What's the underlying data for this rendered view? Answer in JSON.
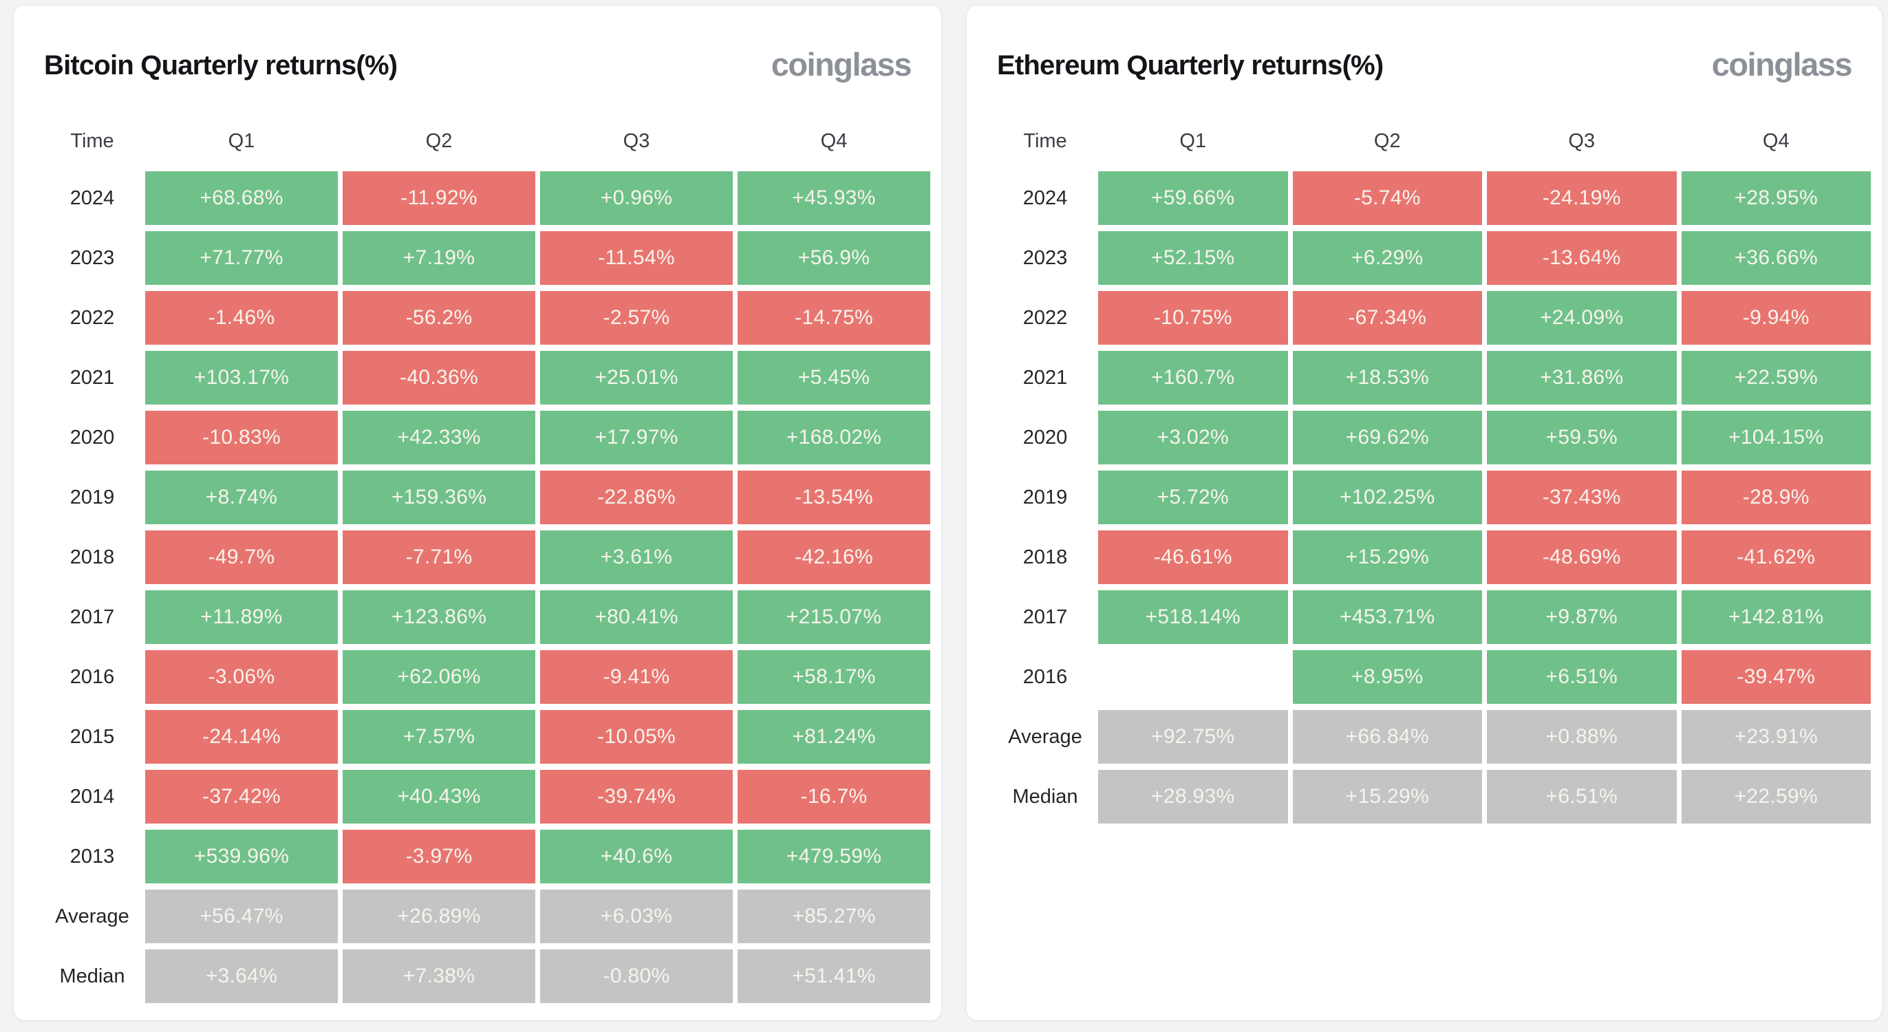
{
  "page": {
    "background": "#f2f3f5"
  },
  "colors": {
    "positive": "#6fc189",
    "negative": "#e87470",
    "summary": "#c4c4c5",
    "cell_text": "#f7f4ec",
    "card_bg": "#ffffff",
    "logo_gray": "#8c9197"
  },
  "chart_data": [
    {
      "type": "table",
      "title": "Bitcoin Quarterly returns(%)",
      "logo": "coinglass",
      "columns": [
        "Time",
        "Q1",
        "Q2",
        "Q3",
        "Q4"
      ],
      "rows": [
        {
          "label": "2024",
          "kind": "year",
          "values": [
            "+68.68%",
            "-11.92%",
            "+0.96%",
            "+45.93%"
          ]
        },
        {
          "label": "2023",
          "kind": "year",
          "values": [
            "+71.77%",
            "+7.19%",
            "-11.54%",
            "+56.9%"
          ]
        },
        {
          "label": "2022",
          "kind": "year",
          "values": [
            "-1.46%",
            "-56.2%",
            "-2.57%",
            "-14.75%"
          ]
        },
        {
          "label": "2021",
          "kind": "year",
          "values": [
            "+103.17%",
            "-40.36%",
            "+25.01%",
            "+5.45%"
          ]
        },
        {
          "label": "2020",
          "kind": "year",
          "values": [
            "-10.83%",
            "+42.33%",
            "+17.97%",
            "+168.02%"
          ]
        },
        {
          "label": "2019",
          "kind": "year",
          "values": [
            "+8.74%",
            "+159.36%",
            "-22.86%",
            "-13.54%"
          ]
        },
        {
          "label": "2018",
          "kind": "year",
          "values": [
            "-49.7%",
            "-7.71%",
            "+3.61%",
            "-42.16%"
          ]
        },
        {
          "label": "2017",
          "kind": "year",
          "values": [
            "+11.89%",
            "+123.86%",
            "+80.41%",
            "+215.07%"
          ]
        },
        {
          "label": "2016",
          "kind": "year",
          "values": [
            "-3.06%",
            "+62.06%",
            "-9.41%",
            "+58.17%"
          ]
        },
        {
          "label": "2015",
          "kind": "year",
          "values": [
            "-24.14%",
            "+7.57%",
            "-10.05%",
            "+81.24%"
          ]
        },
        {
          "label": "2014",
          "kind": "year",
          "values": [
            "-37.42%",
            "+40.43%",
            "-39.74%",
            "-16.7%"
          ]
        },
        {
          "label": "2013",
          "kind": "year",
          "values": [
            "+539.96%",
            "-3.97%",
            "+40.6%",
            "+479.59%"
          ]
        },
        {
          "label": "Average",
          "kind": "summary",
          "values": [
            "+56.47%",
            "+26.89%",
            "+6.03%",
            "+85.27%"
          ]
        },
        {
          "label": "Median",
          "kind": "summary",
          "values": [
            "+3.64%",
            "+7.38%",
            "-0.80%",
            "+51.41%"
          ]
        }
      ]
    },
    {
      "type": "table",
      "title": "Ethereum Quarterly returns(%)",
      "logo": "coinglass",
      "columns": [
        "Time",
        "Q1",
        "Q2",
        "Q3",
        "Q4"
      ],
      "rows": [
        {
          "label": "2024",
          "kind": "year",
          "values": [
            "+59.66%",
            "-5.74%",
            "-24.19%",
            "+28.95%"
          ]
        },
        {
          "label": "2023",
          "kind": "year",
          "values": [
            "+52.15%",
            "+6.29%",
            "-13.64%",
            "+36.66%"
          ]
        },
        {
          "label": "2022",
          "kind": "year",
          "values": [
            "-10.75%",
            "-67.34%",
            "+24.09%",
            "-9.94%"
          ]
        },
        {
          "label": "2021",
          "kind": "year",
          "values": [
            "+160.7%",
            "+18.53%",
            "+31.86%",
            "+22.59%"
          ]
        },
        {
          "label": "2020",
          "kind": "year",
          "values": [
            "+3.02%",
            "+69.62%",
            "+59.5%",
            "+104.15%"
          ]
        },
        {
          "label": "2019",
          "kind": "year",
          "values": [
            "+5.72%",
            "+102.25%",
            "-37.43%",
            "-28.9%"
          ]
        },
        {
          "label": "2018",
          "kind": "year",
          "values": [
            "-46.61%",
            "+15.29%",
            "-48.69%",
            "-41.62%"
          ]
        },
        {
          "label": "2017",
          "kind": "year",
          "values": [
            "+518.14%",
            "+453.71%",
            "+9.87%",
            "+142.81%"
          ]
        },
        {
          "label": "2016",
          "kind": "year",
          "values": [
            "",
            "+8.95%",
            "+6.51%",
            "-39.47%"
          ]
        },
        {
          "label": "Average",
          "kind": "summary",
          "values": [
            "+92.75%",
            "+66.84%",
            "+0.88%",
            "+23.91%"
          ]
        },
        {
          "label": "Median",
          "kind": "summary",
          "values": [
            "+28.93%",
            "+15.29%",
            "+6.51%",
            "+22.59%"
          ]
        }
      ]
    }
  ]
}
